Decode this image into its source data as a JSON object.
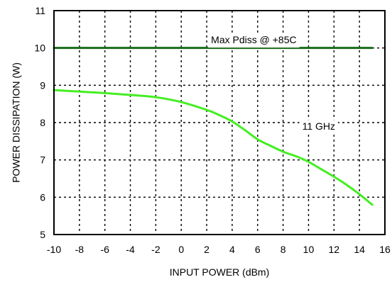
{
  "chart_data": {
    "type": "line",
    "title": "",
    "xlabel": "INPUT POWER (dBm)",
    "ylabel": "POWER DISSIPATION (W)",
    "xlim": [
      -10,
      16
    ],
    "ylim": [
      5,
      11
    ],
    "xticks": [
      -10,
      -8,
      -6,
      -4,
      -2,
      0,
      2,
      4,
      6,
      8,
      10,
      12,
      14,
      16
    ],
    "yticks": [
      5,
      6,
      7,
      8,
      9,
      10,
      11
    ],
    "grid": true,
    "series": [
      {
        "name": "11 GHz",
        "color": "#44ee22",
        "x": [
          -10,
          -8,
          -6,
          -4,
          -2,
          0,
          2,
          3,
          4,
          5,
          6,
          7,
          8,
          9,
          10,
          11,
          12,
          13,
          14,
          15
        ],
        "y": [
          8.87,
          8.83,
          8.79,
          8.74,
          8.68,
          8.55,
          8.34,
          8.2,
          8.03,
          7.8,
          7.55,
          7.38,
          7.22,
          7.1,
          6.95,
          6.75,
          6.55,
          6.33,
          6.08,
          5.8
        ]
      },
      {
        "name": "Max Pdiss @ +85C",
        "color": "#1a6b1a",
        "x": [
          -10,
          15
        ],
        "y": [
          10,
          10
        ]
      }
    ],
    "annotations": [
      {
        "text": "Max Pdiss @ +85C",
        "x": 5.7,
        "y": 10.2
      },
      {
        "text": "11 GHz",
        "x": 10.8,
        "y": 7.88
      }
    ]
  }
}
